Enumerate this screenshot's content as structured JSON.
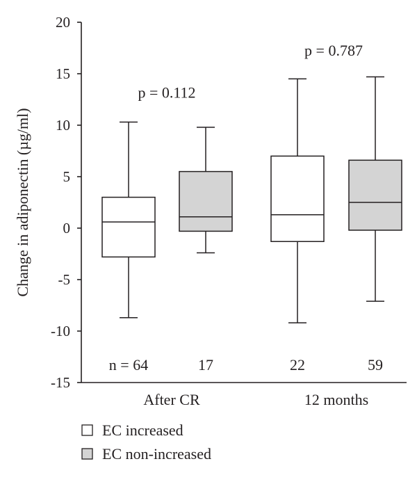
{
  "chart_data": {
    "type": "box",
    "ylabel": "Change in adiponectin (µg/ml)",
    "ylim": [
      -15,
      20
    ],
    "yticks": [
      20,
      15,
      10,
      5,
      0,
      -5,
      -10,
      -15
    ],
    "yticklabels": [
      "20",
      "15",
      "10",
      "5",
      "0",
      "-5",
      "-10",
      "-15"
    ],
    "categories": [
      "After CR",
      "12 months"
    ],
    "series": [
      {
        "name": "EC increased",
        "color": "#ffffff"
      },
      {
        "name": "EC non-increased",
        "color": "#d4d4d4"
      }
    ],
    "boxes": [
      {
        "category": "After CR",
        "series": "EC increased",
        "min": -8.7,
        "q1": -2.8,
        "median": 0.6,
        "q3": 3.0,
        "max": 10.3,
        "n_label": "n = 64"
      },
      {
        "category": "After CR",
        "series": "EC non-increased",
        "min": -2.4,
        "q1": -0.3,
        "median": 1.1,
        "q3": 5.5,
        "max": 9.8,
        "n_label": "17"
      },
      {
        "category": "12 months",
        "series": "EC increased",
        "min": -9.2,
        "q1": -1.3,
        "median": 1.3,
        "q3": 7.0,
        "max": 14.5,
        "n_label": "22"
      },
      {
        "category": "12 months",
        "series": "EC non-increased",
        "min": -7.1,
        "q1": -0.2,
        "median": 2.5,
        "q3": 6.6,
        "max": 14.7,
        "n_label": "59"
      }
    ],
    "annotations": [
      {
        "category": "After CR",
        "text": "p = 0.112",
        "y": 13.2
      },
      {
        "category": "12 months",
        "text": "p = 0.787",
        "y": 17.3
      }
    ],
    "legend_position": "bottom-left"
  }
}
